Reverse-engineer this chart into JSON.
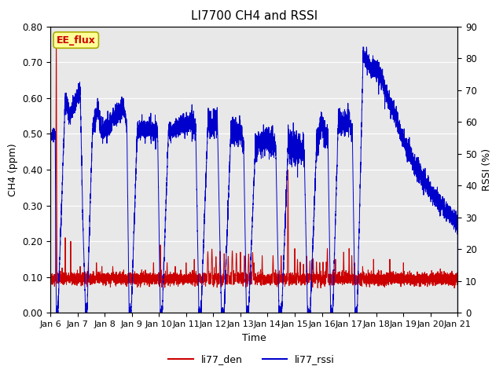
{
  "title": "LI7700 CH4 and RSSI",
  "xlabel": "Time",
  "ylabel_left": "CH4 (ppm)",
  "ylabel_right": "RSSI (%)",
  "xlim_days": [
    6,
    21
  ],
  "ylim_left": [
    0.0,
    0.8
  ],
  "ylim_right": [
    0,
    90
  ],
  "yticks_left": [
    0.0,
    0.1,
    0.2,
    0.3,
    0.4,
    0.5,
    0.6,
    0.7,
    0.8
  ],
  "yticks_right": [
    0,
    10,
    20,
    30,
    40,
    50,
    60,
    70,
    80,
    90
  ],
  "xtick_labels": [
    "Jan 6",
    "Jan 7",
    "Jan 8",
    "Jan 9",
    "Jan 10",
    "Jan 11",
    "Jan 12",
    "Jan 13",
    "Jan 14",
    "Jan 15",
    "Jan 16",
    "Jan 17",
    "Jan 18",
    "Jan 19",
    "Jan 20",
    "Jan 21"
  ],
  "color_ch4": "#cc0000",
  "color_rssi": "#0000cc",
  "legend_label_ch4": "li77_den",
  "legend_label_rssi": "li77_rssi",
  "watermark_text": "EE_flux",
  "watermark_color": "#cc0000",
  "watermark_bgcolor": "#ffff99",
  "watermark_edgecolor": "#aaaa00",
  "bg_color": "#e8e8e8",
  "title_fontsize": 11,
  "axis_label_fontsize": 9,
  "tick_fontsize": 8.5,
  "legend_fontsize": 9
}
